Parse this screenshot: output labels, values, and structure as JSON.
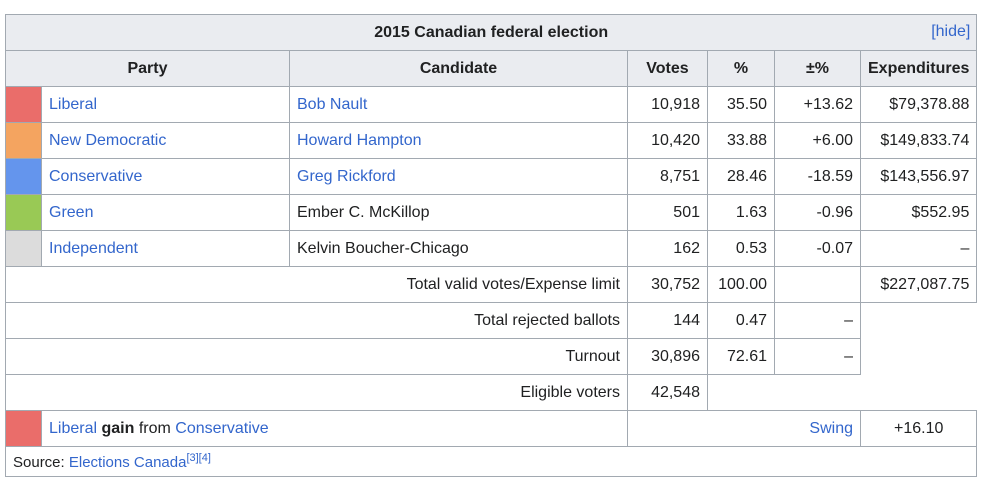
{
  "caption": {
    "title": "2015 Canadian federal election",
    "hide": "hide"
  },
  "headers": {
    "party": "Party",
    "candidate": "Candidate",
    "votes": "Votes",
    "pct": "%",
    "change": "±%",
    "expenditures": "Expenditures"
  },
  "rows": [
    {
      "color": "#EA6D6A",
      "party": "Liberal",
      "candidate": "Bob Nault",
      "candidate_link": true,
      "votes": "10,918",
      "pct": "35.50",
      "change": "+13.62",
      "exp": "$79,378.88"
    },
    {
      "color": "#F4A460",
      "party": "New Democratic",
      "candidate": "Howard Hampton",
      "candidate_link": true,
      "votes": "10,420",
      "pct": "33.88",
      "change": "+6.00",
      "exp": "$149,833.74"
    },
    {
      "color": "#6495ED",
      "party": "Conservative",
      "candidate": "Greg Rickford",
      "candidate_link": true,
      "votes": "8,751",
      "pct": "28.46",
      "change": "-18.59",
      "exp": "$143,556.97"
    },
    {
      "color": "#99C955",
      "party": "Green",
      "candidate": "Ember C. McKillop",
      "candidate_link": false,
      "votes": "501",
      "pct": "1.63",
      "change": "-0.96",
      "exp": "$552.95"
    },
    {
      "color": "#DCDCDC",
      "party": "Independent",
      "candidate": "Kelvin Boucher-Chicago",
      "candidate_link": false,
      "votes": "162",
      "pct": "0.53",
      "change": "-0.07",
      "exp": "–"
    }
  ],
  "totals": {
    "valid_label": "Total valid votes/Expense limit",
    "valid_votes": "30,752",
    "valid_pct": "100.00",
    "expense_limit": "$227,087.75",
    "rejected_label": "Total rejected ballots",
    "rejected_votes": "144",
    "rejected_pct": "0.47",
    "rejected_change": "–",
    "turnout_label": "Turnout",
    "turnout_votes": "30,896",
    "turnout_pct": "72.61",
    "turnout_change": "–",
    "eligible_label": "Eligible voters",
    "eligible_votes": "42,548"
  },
  "gain": {
    "color": "#EA6D6A",
    "party": "Liberal",
    "word": "gain",
    "from": "from",
    "from_party": "Conservative",
    "swing_label": "Swing",
    "swing_value": "+16.10"
  },
  "source": {
    "label": "Source:",
    "link": "Elections Canada",
    "refs": "[3][4]"
  }
}
